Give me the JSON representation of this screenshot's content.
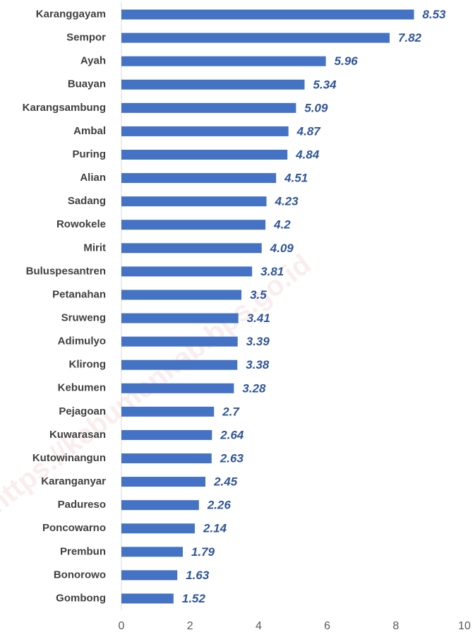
{
  "chart_data": {
    "type": "bar",
    "orientation": "horizontal",
    "categories": [
      "Karanggayam",
      "Sempor",
      "Ayah",
      "Buayan",
      "Karangsambung",
      "Ambal",
      "Puring",
      "Alian",
      "Sadang",
      "Rowokele",
      "Mirit",
      "Buluspesantren",
      "Petanahan",
      "Sruweng",
      "Adimulyo",
      "Klirong",
      "Kebumen",
      "Pejagoan",
      "Kuwarasan",
      "Kutowinangun",
      "Karanganyar",
      "Padureso",
      "Poncowarno",
      "Prembun",
      "Bonorowo",
      "Gombong"
    ],
    "values": [
      8.53,
      7.82,
      5.96,
      5.34,
      5.09,
      4.87,
      4.84,
      4.51,
      4.23,
      4.2,
      4.09,
      3.81,
      3.5,
      3.41,
      3.39,
      3.38,
      3.28,
      2.7,
      2.64,
      2.63,
      2.45,
      2.26,
      2.14,
      1.79,
      1.63,
      1.52
    ],
    "color": "#4472c4",
    "xlim": [
      0,
      10
    ],
    "xticks": [
      0,
      2,
      4,
      6,
      8,
      10
    ],
    "grid": false,
    "watermark": "https://kebumenkab.bps.go.id"
  }
}
